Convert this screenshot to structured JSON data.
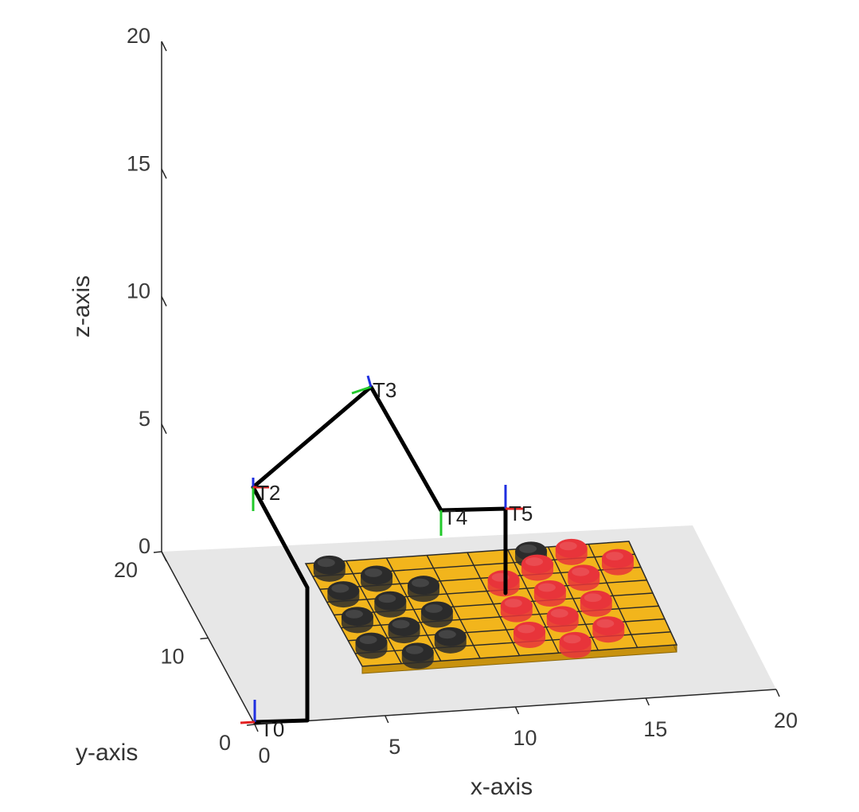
{
  "chart_data": {
    "type": "3d-robot-arm-plot",
    "xlabel": "x-axis",
    "ylabel": "y-axis",
    "zlabel": "z-axis",
    "xlim": [
      0,
      20
    ],
    "ylim": [
      0,
      20
    ],
    "zlim": [
      0,
      20
    ],
    "x_ticks": [
      "0",
      "5",
      "10",
      "15",
      "20"
    ],
    "y_ticks": [
      "0",
      "10",
      "20"
    ],
    "z_ticks": [
      "0",
      "5",
      "10",
      "15",
      "20"
    ],
    "frames": [
      {
        "label": "T0",
        "x": 0.0,
        "y": 0.0,
        "z": 0.0
      },
      {
        "label": "T2",
        "x": 1.5,
        "y": 17.0,
        "z": 0.0
      },
      {
        "label": "T3",
        "x": 5.5,
        "y": 17.0,
        "z": 3.3
      },
      {
        "label": "T4",
        "x": 7.5,
        "y": 17.0,
        "z": 0.0
      },
      {
        "label": "T5",
        "x": 9.7,
        "y": 17.0,
        "z": 0.0
      }
    ],
    "board": {
      "rows": 8,
      "cols": 8,
      "color": "#f2b51c",
      "black_pieces": [
        [
          0,
          0
        ],
        [
          0,
          2
        ],
        [
          0,
          4
        ],
        [
          0,
          6
        ],
        [
          1,
          1
        ],
        [
          1,
          3
        ],
        [
          1,
          5
        ],
        [
          1,
          7
        ],
        [
          2,
          2
        ],
        [
          2,
          4
        ],
        [
          2,
          6
        ],
        [
          5,
          0
        ]
      ],
      "red_pieces": [
        [
          4,
          2
        ],
        [
          4,
          4
        ],
        [
          4,
          6
        ],
        [
          5,
          1
        ],
        [
          5,
          3
        ],
        [
          5,
          5
        ],
        [
          5,
          7
        ],
        [
          6,
          0
        ],
        [
          6,
          2
        ],
        [
          6,
          4
        ],
        [
          6,
          6
        ],
        [
          7,
          1
        ]
      ],
      "black_color": "#2b2b2b",
      "red_color": "#e8343a"
    },
    "colors": {
      "link": "#000000",
      "x_axis_marker": "#e32222",
      "y_axis_marker": "#22c92b",
      "z_axis_marker": "#1f2fe0",
      "floor": "#e7e7e7",
      "walls": "#ffffff"
    }
  }
}
